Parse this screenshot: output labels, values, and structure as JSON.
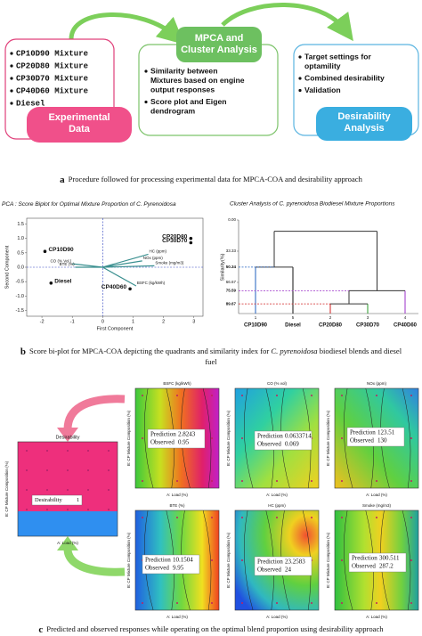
{
  "panel_a": {
    "experimental": {
      "items": [
        "CP10D90 Mixture",
        "CP20D80 Mixture",
        "CP30D70 Mixture",
        "CP40D60 Mixture",
        "Diesel"
      ],
      "label_lines": [
        "Experimental",
        "Data"
      ]
    },
    "analysis": {
      "label_lines": [
        "MPCA and",
        "Cluster Analysis"
      ],
      "items": [
        [
          "Similarity between",
          "Mixtures based on engine",
          "output responses"
        ],
        [
          "Score plot and Eigen",
          "dendrogram"
        ]
      ]
    },
    "desirability": {
      "label_lines": [
        "Desirability",
        "Analysis"
      ],
      "items": [
        [
          "Target settings for",
          "optamility"
        ],
        [
          "Combined desirability"
        ],
        [
          "Validation"
        ]
      ]
    },
    "caption": {
      "letter": "a",
      "text": "Procedure followed for processing experimental data for MPCA-COA and desirability approach"
    }
  },
  "chart_data": [
    {
      "type": "scatter",
      "title": "PCA : Score Biplot for Optimal Mixture Proportion of ",
      "title_species": "C. Pyrenoidosa",
      "x_label": "First Component",
      "y_label": "Second Component",
      "xlim": [
        -2.5,
        3.3
      ],
      "ylim": [
        -1.7,
        1.7
      ],
      "xticks": [
        -2,
        -1,
        0,
        1,
        2,
        3
      ],
      "yticks": [
        -1.5,
        {
          "value": -1,
          "label": "-1.0"
        },
        -0.5,
        {
          "value": 0,
          "label": "0.0"
        },
        0.5,
        {
          "value": 1,
          "label": "1.0"
        },
        1.5
      ],
      "points": [
        {
          "label": "CP10D90",
          "x": -1.9,
          "y": 0.55
        },
        {
          "label": "Diesel",
          "x": -1.7,
          "y": -0.55
        },
        {
          "label": "CP40D60",
          "x": 0.9,
          "y": -0.75
        },
        {
          "label": "CP20D80",
          "x": 2.9,
          "y": 1.0
        },
        {
          "label": "CP30D70",
          "x": 2.9,
          "y": 0.85
        }
      ],
      "point_color": "#111111",
      "label_color": "#c0282d",
      "loadings": [
        {
          "label": "CO (% Vol.)",
          "x": -1.0,
          "y": 0.12
        },
        {
          "label": "BTE (%)",
          "x": -0.9,
          "y": 0.0
        },
        {
          "label": "HC (ppm)",
          "x": 1.5,
          "y": 0.45
        },
        {
          "label": "NOx (ppm)",
          "x": 1.3,
          "y": 0.22
        },
        {
          "label": "Smoke (mg/m3)",
          "x": 1.7,
          "y": 0.05
        },
        {
          "label": "BSFC (kg/kWh)",
          "x": 1.1,
          "y": -0.65
        }
      ],
      "loading_color": "#3a8f8f"
    },
    {
      "type": "dendrogram",
      "title": "Cluster Analysis of C. pyrenoidosa Biodiesel Mixture Proportions",
      "y_label": "Similarity(%)",
      "ylim": [
        0,
        100
      ],
      "y_inverted": true,
      "yticks": [
        {
          "value": 0,
          "label": "0.00"
        },
        33.33,
        66.67
      ],
      "leaves": [
        "CP10D90",
        "Diesel",
        "CP20D80",
        "CP30D70",
        "CP40D60"
      ],
      "leaf_numbers": [
        "1",
        "5",
        "2",
        "3",
        "4"
      ],
      "leaf_colors": [
        "#1f5fbf",
        "#111111",
        "#d02020",
        "#2a9a2a",
        "#9b30c8"
      ],
      "merge_levels": [
        50.34,
        75.59,
        89.67
      ],
      "merge_colors": [
        "#1f5fbf",
        "#9b30c8",
        "#d02020"
      ],
      "root_level": 12
    }
  ],
  "caption_b": {
    "letter": "b",
    "parts": [
      "Score bi-plot for MPCA-COA depicting the quadrants and similarity index for ",
      "C. pyrenoidosa",
      " biodiesel blends and diesel"
    ],
    "line2": "fuel"
  },
  "panel_c": {
    "x_label": "A: Load (%)",
    "y_label": "B: CP Mixture Composition (%)",
    "prediction_label": "Prediction",
    "observed_label": "Observed",
    "desirability_plot": {
      "title": "Desirability",
      "label": "Desirability",
      "value": 1
    },
    "plots": [
      {
        "title": "BSFC (kg/kWh)",
        "prediction": 2.8243,
        "observed": 0.95
      },
      {
        "title": "CO (% vol)",
        "prediction": 0.0633714,
        "observed": 0.069
      },
      {
        "title": "NOx (ppm)",
        "prediction": 123.51,
        "observed": 130
      },
      {
        "title": "BTE (%)",
        "prediction": 10.1504,
        "observed": 9.95
      },
      {
        "title": "HC (ppm)",
        "prediction": 23.2583,
        "observed": 24
      },
      {
        "title": "Smoke (mg/m3)",
        "prediction": 300.511,
        "observed": 287.2
      }
    ],
    "caption": {
      "letter": "c",
      "text": "Predicted and observed responses while operating on the optimal blend proportion using desirability approach"
    }
  }
}
